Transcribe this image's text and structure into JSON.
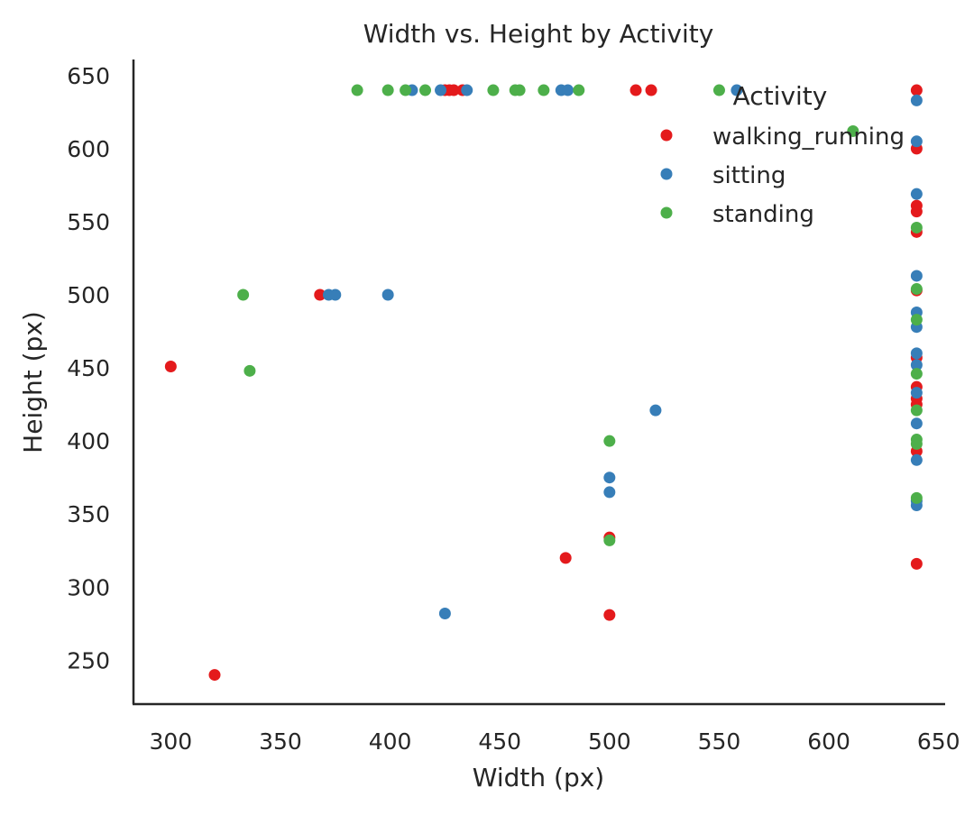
{
  "chart_data": {
    "type": "scatter",
    "title": "Width vs. Height by Activity",
    "xlabel": "Width (px)",
    "ylabel": "Height (px)",
    "xlim": [
      283,
      653
    ],
    "ylim": [
      220,
      661
    ],
    "xticks": [
      300,
      350,
      400,
      450,
      500,
      550,
      600,
      650
    ],
    "yticks": [
      250,
      300,
      350,
      400,
      450,
      500,
      550,
      600,
      650
    ],
    "grid": false,
    "legend": {
      "title": "Activity",
      "placement": "top-right"
    },
    "series": [
      {
        "name": "walking_running",
        "color": "#e41a1c",
        "points": [
          [
            300,
            451
          ],
          [
            320,
            240
          ],
          [
            368,
            500
          ],
          [
            425,
            640
          ],
          [
            427,
            640
          ],
          [
            429,
            640
          ],
          [
            433,
            640
          ],
          [
            480,
            320
          ],
          [
            500,
            334
          ],
          [
            500,
            281
          ],
          [
            512,
            640
          ],
          [
            519,
            640
          ],
          [
            640,
            640
          ],
          [
            640,
            600
          ],
          [
            640,
            561
          ],
          [
            640,
            557
          ],
          [
            640,
            543
          ],
          [
            640,
            503
          ],
          [
            640,
            457
          ],
          [
            640,
            437
          ],
          [
            640,
            429
          ],
          [
            640,
            425
          ],
          [
            640,
            393
          ],
          [
            640,
            316
          ]
        ]
      },
      {
        "name": "sitting",
        "color": "#377eb8",
        "points": [
          [
            372,
            500
          ],
          [
            375,
            500
          ],
          [
            399,
            500
          ],
          [
            410,
            640
          ],
          [
            423,
            640
          ],
          [
            435,
            640
          ],
          [
            425,
            282
          ],
          [
            478,
            640
          ],
          [
            481,
            640
          ],
          [
            500,
            375
          ],
          [
            500,
            365
          ],
          [
            521,
            421
          ],
          [
            558,
            640
          ],
          [
            640,
            633
          ],
          [
            640,
            605
          ],
          [
            640,
            569
          ],
          [
            640,
            513
          ],
          [
            640,
            488
          ],
          [
            640,
            478
          ],
          [
            640,
            460
          ],
          [
            640,
            452
          ],
          [
            640,
            433
          ],
          [
            640,
            412
          ],
          [
            640,
            387
          ],
          [
            640,
            359
          ],
          [
            640,
            356
          ]
        ]
      },
      {
        "name": "standing",
        "color": "#4daf4a",
        "points": [
          [
            333,
            500
          ],
          [
            336,
            448
          ],
          [
            385,
            640
          ],
          [
            399,
            640
          ],
          [
            407,
            640
          ],
          [
            416,
            640
          ],
          [
            447,
            640
          ],
          [
            457,
            640
          ],
          [
            459,
            640
          ],
          [
            470,
            640
          ],
          [
            486,
            640
          ],
          [
            500,
            400
          ],
          [
            500,
            332
          ],
          [
            550,
            640
          ],
          [
            611,
            612
          ],
          [
            640,
            546
          ],
          [
            640,
            504
          ],
          [
            640,
            483
          ],
          [
            640,
            446
          ],
          [
            640,
            421
          ],
          [
            640,
            401
          ],
          [
            640,
            398
          ],
          [
            640,
            361
          ]
        ]
      }
    ]
  }
}
